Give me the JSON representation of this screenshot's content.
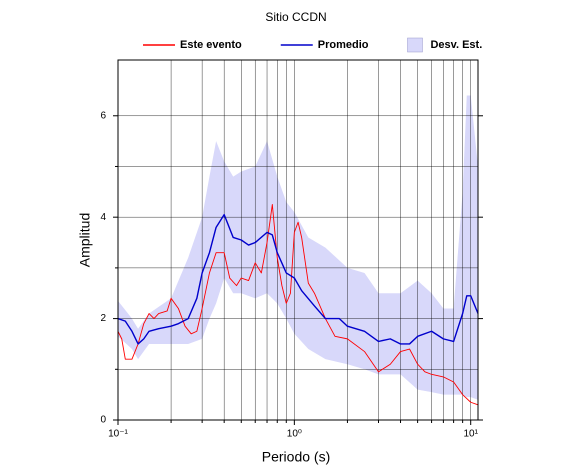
{
  "chart_data": {
    "type": "line",
    "title": "Sitio CCDN",
    "x_label": "Periodo (s)",
    "y_label": "Amplitud",
    "xscale": "log",
    "xlim": [
      0.1,
      11
    ],
    "ylim": [
      0,
      7.1
    ],
    "xticks": [
      {
        "value": 0.1,
        "label": "10⁻¹"
      },
      {
        "value": 1,
        "label": "10⁰"
      },
      {
        "value": 10,
        "label": "10¹"
      }
    ],
    "x_minor_ticks": [
      0.2,
      0.3,
      0.4,
      0.5,
      0.6,
      0.7,
      0.8,
      0.9,
      2,
      3,
      4,
      5,
      6,
      7,
      8,
      9
    ],
    "yticks": [
      0,
      2,
      4,
      6
    ],
    "y_minor_ticks": [
      1,
      3,
      5
    ],
    "grid": true,
    "series": [
      {
        "name": "Este evento",
        "color": "#ff0000",
        "x": [
          0.1,
          0.105,
          0.11,
          0.12,
          0.13,
          0.14,
          0.15,
          0.16,
          0.17,
          0.19,
          0.2,
          0.22,
          0.24,
          0.26,
          0.28,
          0.3,
          0.33,
          0.36,
          0.4,
          0.43,
          0.47,
          0.5,
          0.55,
          0.6,
          0.65,
          0.7,
          0.75,
          0.8,
          0.85,
          0.9,
          0.95,
          1.0,
          1.05,
          1.1,
          1.2,
          1.3,
          1.5,
          1.7,
          2.0,
          2.5,
          3.0,
          3.5,
          4.0,
          4.5,
          5.0,
          5.5,
          6.0,
          7.0,
          8.0,
          9.0,
          10,
          11
        ],
        "values": [
          1.75,
          1.6,
          1.2,
          1.2,
          1.5,
          1.9,
          2.1,
          2.0,
          2.1,
          2.15,
          2.4,
          2.2,
          1.85,
          1.7,
          1.75,
          2.2,
          2.9,
          3.3,
          3.3,
          2.8,
          2.65,
          2.8,
          2.75,
          3.1,
          2.9,
          3.5,
          4.25,
          3.2,
          2.65,
          2.3,
          2.5,
          3.7,
          3.9,
          3.6,
          2.7,
          2.5,
          2.0,
          1.65,
          1.6,
          1.35,
          0.95,
          1.1,
          1.35,
          1.4,
          1.1,
          0.95,
          0.9,
          0.85,
          0.75,
          0.5,
          0.35,
          0.3
        ]
      },
      {
        "name": "Promedio",
        "color": "#0000cc",
        "x": [
          0.1,
          0.11,
          0.12,
          0.13,
          0.14,
          0.15,
          0.17,
          0.2,
          0.22,
          0.25,
          0.28,
          0.3,
          0.33,
          0.36,
          0.4,
          0.45,
          0.5,
          0.55,
          0.6,
          0.7,
          0.75,
          0.8,
          0.9,
          1.0,
          1.1,
          1.3,
          1.5,
          1.8,
          2.0,
          2.5,
          3.0,
          3.5,
          4.0,
          4.5,
          5.0,
          6.0,
          7.0,
          8.0,
          9.0,
          9.5,
          10,
          11
        ],
        "values": [
          2.0,
          1.95,
          1.75,
          1.5,
          1.6,
          1.75,
          1.8,
          1.85,
          1.9,
          2.0,
          2.4,
          2.9,
          3.3,
          3.8,
          4.05,
          3.6,
          3.55,
          3.45,
          3.5,
          3.7,
          3.65,
          3.3,
          2.9,
          2.8,
          2.55,
          2.25,
          2.0,
          2.0,
          1.85,
          1.75,
          1.55,
          1.6,
          1.5,
          1.5,
          1.65,
          1.75,
          1.6,
          1.55,
          2.1,
          2.45,
          2.45,
          2.1
        ]
      }
    ],
    "band": {
      "name": "Desv. Est.",
      "color": "#d8d8fa",
      "x": [
        0.1,
        0.12,
        0.13,
        0.15,
        0.2,
        0.25,
        0.3,
        0.33,
        0.36,
        0.4,
        0.45,
        0.5,
        0.6,
        0.7,
        0.8,
        0.9,
        1.0,
        1.2,
        1.5,
        2.0,
        2.5,
        3.0,
        4.0,
        5.0,
        6.0,
        7.0,
        8.0,
        9.0,
        9.5,
        10,
        11
      ],
      "upper": [
        2.35,
        2.0,
        1.8,
        2.1,
        2.4,
        3.2,
        4.0,
        4.8,
        5.5,
        5.1,
        4.8,
        4.9,
        5.0,
        5.5,
        4.8,
        4.3,
        4.1,
        3.6,
        3.4,
        3.0,
        2.9,
        2.5,
        2.5,
        2.75,
        2.5,
        2.2,
        2.2,
        4.5,
        6.4,
        6.4,
        5.0
      ],
      "lower": [
        1.65,
        1.4,
        1.2,
        1.5,
        1.5,
        1.5,
        1.6,
        2.0,
        2.3,
        2.8,
        2.5,
        2.5,
        2.4,
        2.5,
        2.3,
        2.0,
        1.7,
        1.4,
        1.2,
        1.1,
        1.0,
        0.9,
        0.9,
        0.6,
        0.55,
        0.5,
        0.5,
        0.5,
        0.45,
        0.45,
        0.4
      ]
    }
  }
}
